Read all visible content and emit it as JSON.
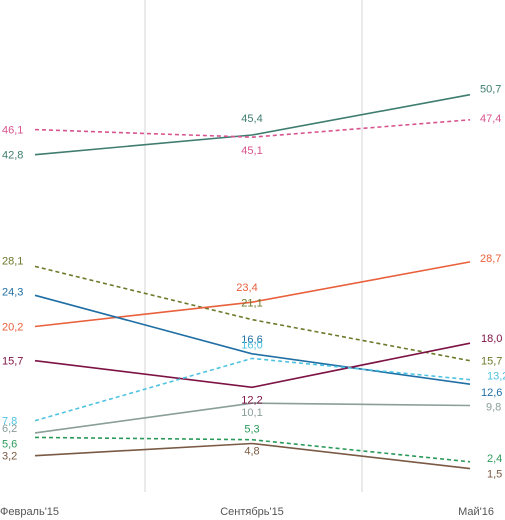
{
  "chart_data": {
    "type": "line",
    "x": [
      "Февраль'15",
      "Сентябрь'15",
      "Май'16"
    ],
    "grid": "vertical",
    "legend": "none",
    "series": [
      {
        "values": [
          42.8,
          45.4,
          50.7
        ],
        "labels": [
          "42,8",
          "45,4",
          "50,7"
        ],
        "color": "#3e7d6f",
        "dashed": false
      },
      {
        "values": [
          46.1,
          45.1,
          47.4
        ],
        "labels": [
          "46,1",
          "45,1",
          "47,4"
        ],
        "color": "#d8548f",
        "dashed": true
      },
      {
        "values": [
          28.1,
          21.1,
          15.7
        ],
        "labels": [
          "28,1",
          "21,1",
          "15,7"
        ],
        "color": "#6b7a2a",
        "dashed": true
      },
      {
        "values": [
          20.2,
          23.4,
          28.7
        ],
        "labels": [
          "20,2",
          "23,4",
          "28,7"
        ],
        "color": "#e8603c",
        "dashed": false
      },
      {
        "values": [
          24.3,
          16.6,
          12.6
        ],
        "labels": [
          "24,3",
          "16,6",
          "12,6"
        ],
        "color": "#1f6fa5",
        "dashed": false
      },
      {
        "values": [
          15.7,
          12.2,
          18.0
        ],
        "labels": [
          "15,7",
          "12,2",
          "18,0"
        ],
        "color": "#7d1244",
        "dashed": false
      },
      {
        "values": [
          7.8,
          16.0,
          13.2
        ],
        "labels": [
          "7,8",
          "16,0",
          "13,2"
        ],
        "color": "#4fc3e0",
        "dashed": true
      },
      {
        "values": [
          6.2,
          10.1,
          9.8
        ],
        "labels": [
          "6,2",
          "10,1",
          "9,8"
        ],
        "color": "#8a9e9a",
        "dashed": false
      },
      {
        "values": [
          5.6,
          5.3,
          2.4
        ],
        "labels": [
          "5,6",
          "5,3",
          "2,4"
        ],
        "color": "#2a9a5a",
        "dashed": true
      },
      {
        "values": [
          3.2,
          4.8,
          1.5
        ],
        "labels": [
          "3,2",
          "4,8",
          "1,5"
        ],
        "color": "#7a5a44",
        "dashed": false
      }
    ]
  }
}
